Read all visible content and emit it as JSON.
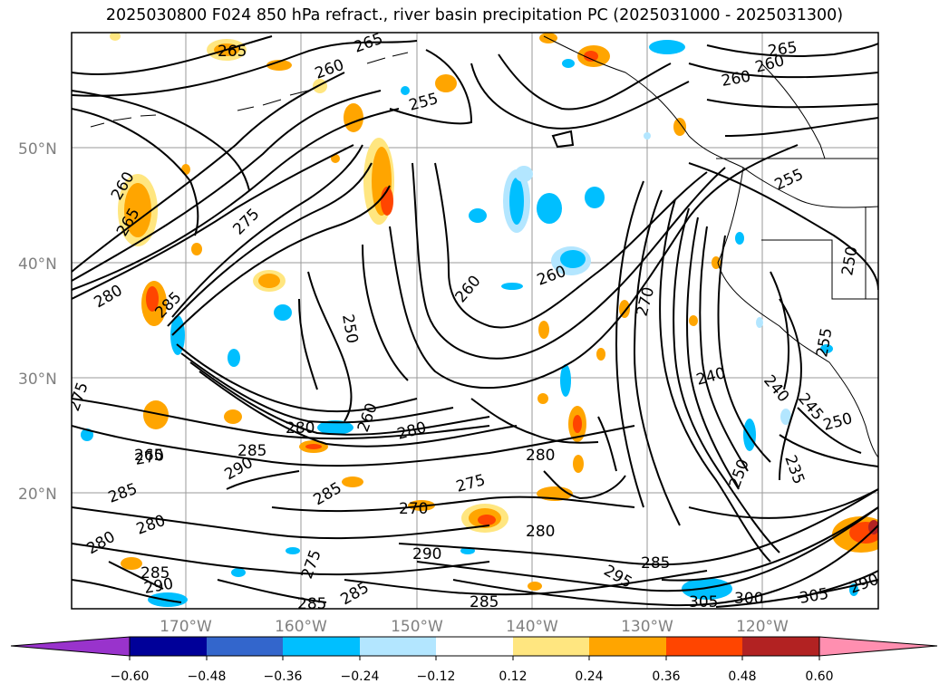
{
  "title": "2025030800 F024 850 hPa refract., river basin precipitation PC (2025031000 - 2025031300)",
  "lat_labels": [
    "50°N",
    "40°N",
    "30°N",
    "20°N"
  ],
  "lon_labels": [
    "170°W",
    "160°W",
    "150°W",
    "140°W",
    "130°W",
    "120°W"
  ],
  "colorbar": {
    "colors": [
      "#9933cc",
      "#000099",
      "#3366cc",
      "#00bfff",
      "#b3e6ff",
      "#ffffff",
      "#ffe680",
      "#ffa500",
      "#ff4500",
      "#b22222",
      "#ff8fb0"
    ],
    "labels": [
      "−0.60",
      "−0.48",
      "−0.36",
      "−0.24",
      "−0.12",
      "0.12",
      "0.24",
      "0.36",
      "0.48",
      "0.60"
    ]
  },
  "contour_labels": [
    "265",
    "260",
    "255",
    "265",
    "260",
    "265",
    "260",
    "255",
    "260",
    "265",
    "275",
    "280",
    "285",
    "250",
    "260",
    "260",
    "270",
    "240",
    "240",
    "245",
    "250",
    "235",
    "250",
    "255",
    "250",
    "275",
    "260",
    "280",
    "280",
    "285",
    "265",
    "270",
    "285",
    "285",
    "280",
    "275",
    "270",
    "280",
    "280",
    "280",
    "285",
    "290",
    "295",
    "285",
    "300",
    "305",
    "285",
    "290",
    "285",
    "305",
    "290",
    "285",
    "290",
    "275"
  ]
}
